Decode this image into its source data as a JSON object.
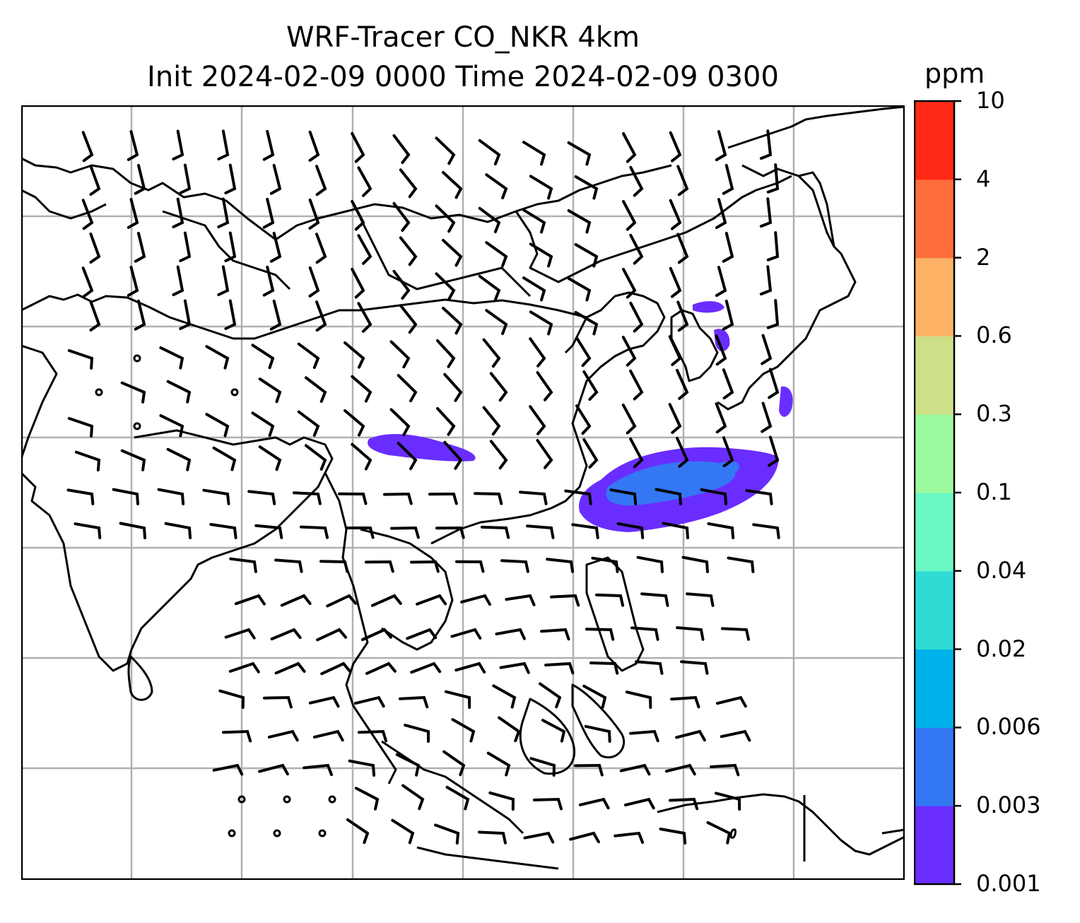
{
  "title": {
    "line1": "WRF-Tracer CO_NKR 4km",
    "line2": "Init 2024-02-09 0000 Time 2024-02-09 0300"
  },
  "colorbar": {
    "unit": "ppm",
    "levels": [
      "0.001",
      "0.003",
      "0.006",
      "0.02",
      "0.04",
      "0.1",
      "0.3",
      "0.6",
      "2",
      "4",
      "10"
    ],
    "colors": [
      "#6a2dff",
      "#3477f5",
      "#00b2ea",
      "#2fdcd4",
      "#6af8c4",
      "#9bf99d",
      "#cde088",
      "#fdb165",
      "#fd6e3c",
      "#ff2a16"
    ]
  },
  "map": {
    "frame_color": "#000000",
    "grid_color": "#b0b0b0",
    "coastline_color": "#000000",
    "wind_barb_color": "#000000"
  }
}
